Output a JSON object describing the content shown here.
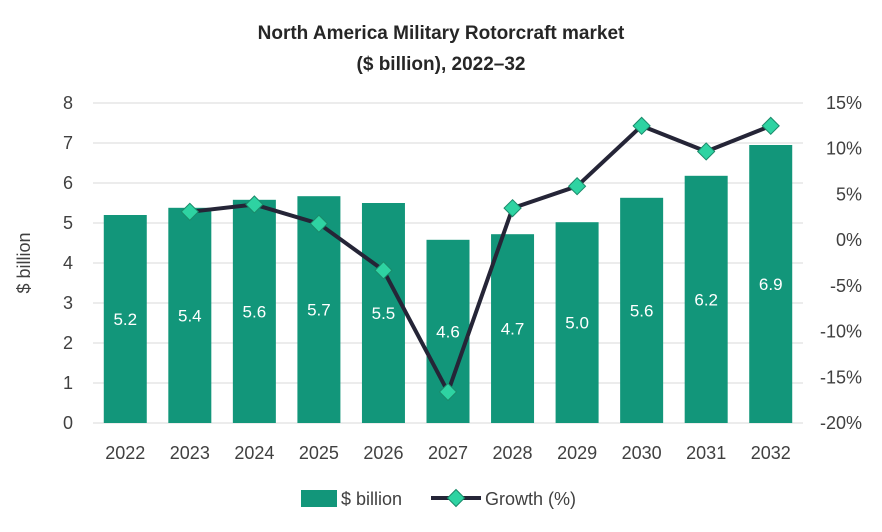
{
  "chart_data": {
    "type": "bar",
    "title": "North America Military Rotorcraft market",
    "subtitle": "($ billion), 2022–32",
    "categories": [
      "2022",
      "2023",
      "2024",
      "2025",
      "2026",
      "2027",
      "2028",
      "2029",
      "2030",
      "2031",
      "2032"
    ],
    "ylabel": "$ billion",
    "ylim": [
      0,
      8
    ],
    "yticks": [
      "0",
      "1",
      "2",
      "3",
      "4",
      "5",
      "6",
      "7",
      "8"
    ],
    "y2lim": [
      -20,
      15
    ],
    "y2ticks": [
      "-20%",
      "-15%",
      "-10%",
      "-5%",
      "0%",
      "5%",
      "10%",
      "15%"
    ],
    "grid": true,
    "legend_position": "bottom",
    "series": [
      {
        "name": "$ billion",
        "type": "bar",
        "color": "#12967a",
        "values": [
          5.2,
          5.38,
          5.58,
          5.67,
          5.5,
          4.58,
          4.72,
          5.02,
          5.63,
          6.18,
          6.95
        ],
        "labels": [
          "5.2",
          "5.4",
          "5.6",
          "5.7",
          "5.5",
          "4.6",
          "4.7",
          "5.0",
          "5.6",
          "6.2",
          "6.9"
        ]
      },
      {
        "name": "Growth (%)",
        "type": "line",
        "axis": "right",
        "color": "#252537",
        "marker_color": "#2ed3a2",
        "values": [
          null,
          3.1,
          3.9,
          1.8,
          -3.3,
          -16.6,
          3.5,
          5.9,
          12.5,
          9.7,
          12.5
        ]
      }
    ]
  }
}
